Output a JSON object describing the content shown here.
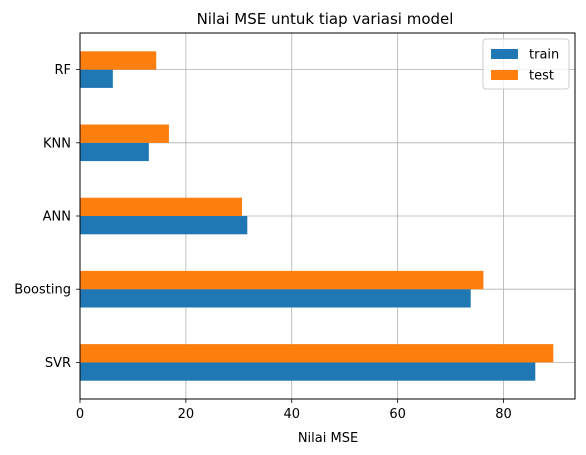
{
  "chart_data": {
    "type": "bar",
    "orientation": "horizontal",
    "title": "Nilai MSE untuk tiap variasi model",
    "xlabel": "Nilai MSE",
    "ylabel": "",
    "categories": [
      "SVR",
      "Boosting",
      "ANN",
      "KNN",
      "RF"
    ],
    "series": [
      {
        "name": "train",
        "color": "#1f77b4",
        "values": [
          86.0,
          73.8,
          31.6,
          13.0,
          6.2
        ]
      },
      {
        "name": "test",
        "color": "#ff7f0e",
        "values": [
          89.4,
          76.2,
          30.6,
          16.8,
          14.4
        ]
      }
    ],
    "xlim": [
      0,
      93.5
    ],
    "xticks": [
      0,
      20,
      40,
      60,
      80
    ],
    "grid": true,
    "legend_position": "top-right"
  }
}
